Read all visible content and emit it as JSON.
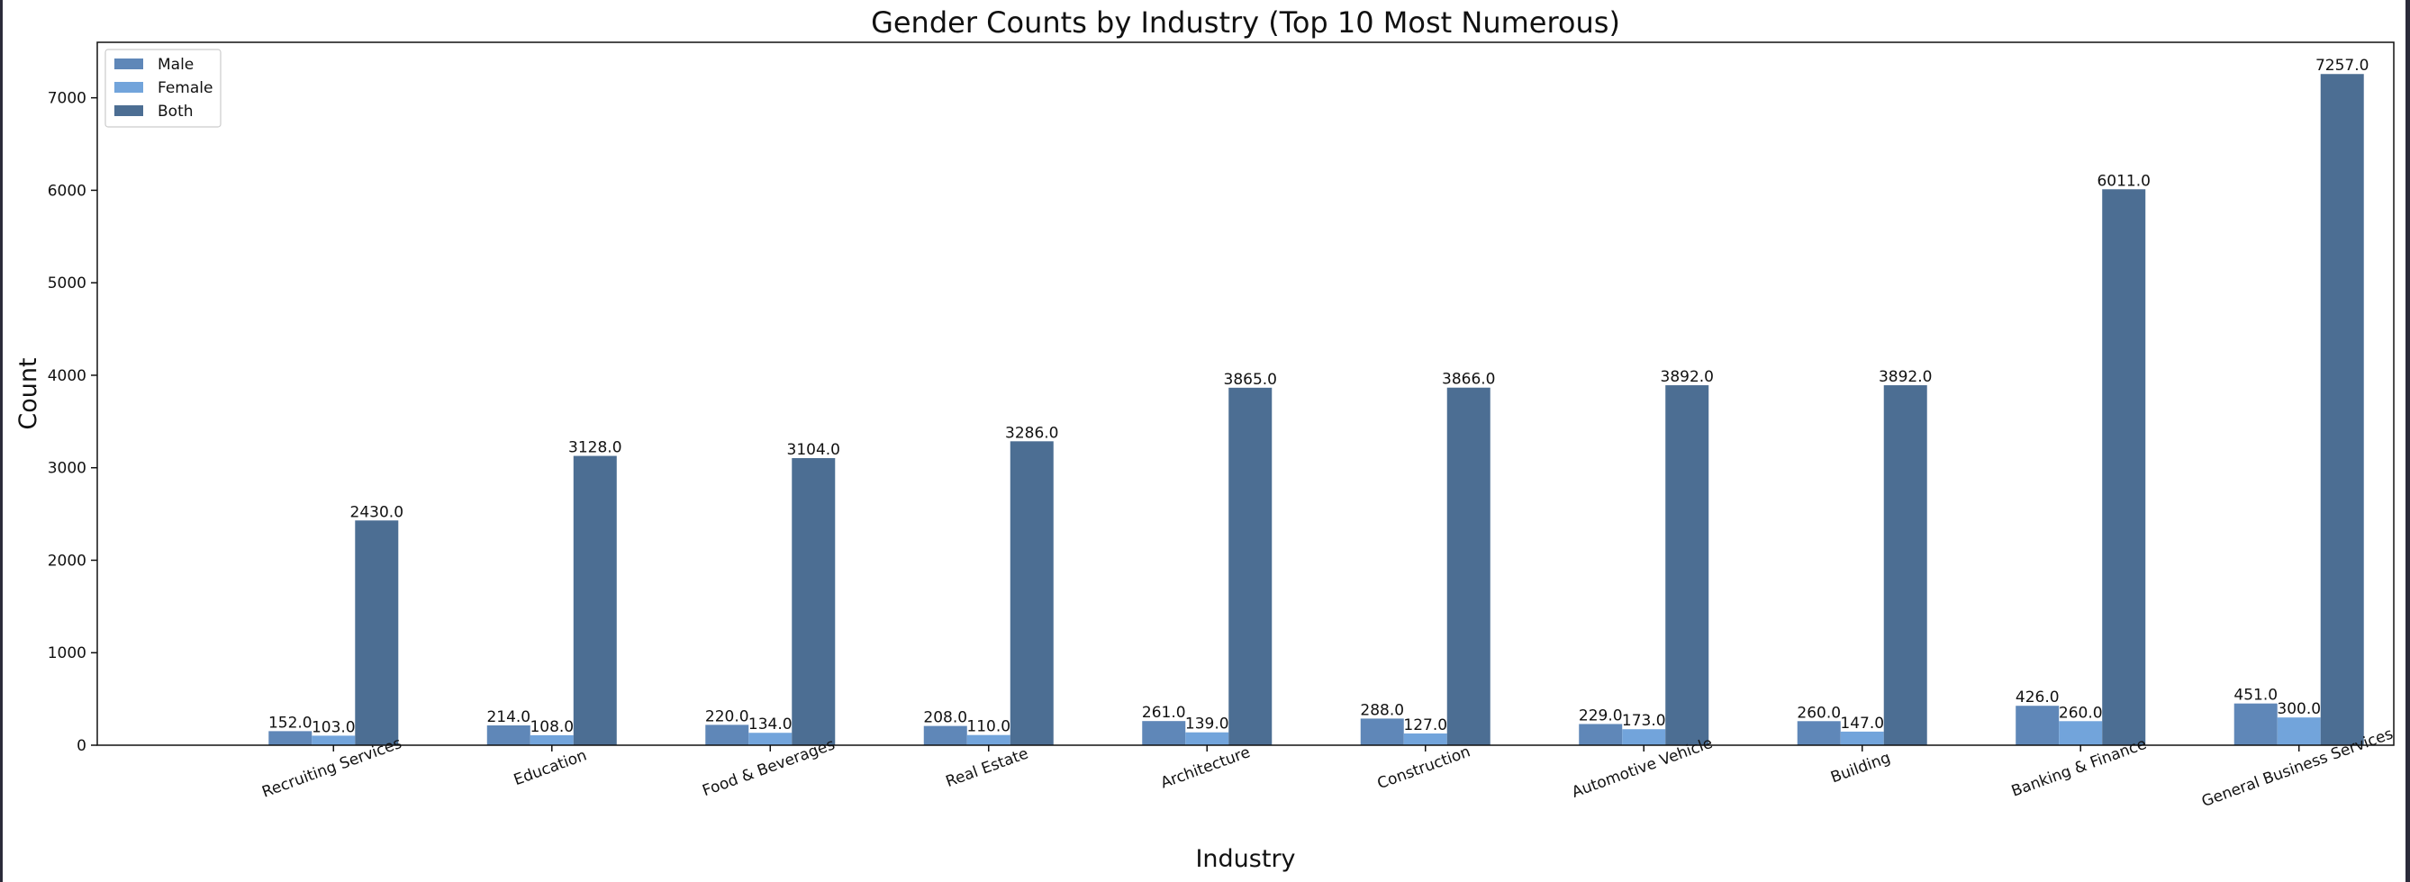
{
  "chart_data": {
    "type": "bar",
    "title": "Gender Counts by Industry (Top 10 Most Numerous)",
    "xlabel": "Industry",
    "ylabel": "Count",
    "ylim": [
      0,
      7600
    ],
    "yticks": [
      0,
      1000,
      2000,
      3000,
      4000,
      5000,
      6000,
      7000
    ],
    "grid": false,
    "legend_position": "top-left",
    "categories": [
      "Recruiting Services",
      "Education",
      "Food & Beverages",
      "Real Estate",
      "Architecture",
      "Construction",
      "Automotive  Vehicle",
      "Building",
      "Banking & Finance",
      "General Business Services"
    ],
    "series": [
      {
        "name": "Male",
        "color": "#5f87b8",
        "values": [
          152.0,
          214.0,
          220.0,
          208.0,
          261.0,
          288.0,
          229.0,
          260.0,
          426.0,
          451.0
        ],
        "labels": [
          "152.0",
          "214.0",
          "220.0",
          "208.0",
          "261.0",
          "288.0",
          "229.0",
          "260.0",
          "426.0",
          "451.0"
        ]
      },
      {
        "name": "Female",
        "color": "#72a4db",
        "values": [
          103.0,
          108.0,
          134.0,
          110.0,
          139.0,
          127.0,
          173.0,
          147.0,
          260.0,
          300.0
        ],
        "labels": [
          "103.0",
          "108.0",
          "134.0",
          "110.0",
          "139.0",
          "127.0",
          "173.0",
          "147.0",
          "260.0",
          "300.0"
        ]
      },
      {
        "name": "Both",
        "color": "#4c6e93",
        "values": [
          2430.0,
          3128.0,
          3104.0,
          3286.0,
          3865.0,
          3866.0,
          3892.0,
          3892.0,
          6011.0,
          7257.0
        ],
        "labels": [
          "2430.0",
          "3128.0",
          "3104.0",
          "3286.0",
          "3865.0",
          "3866.0",
          "3892.0",
          "3892.0",
          "6011.0",
          "7257.0"
        ]
      }
    ]
  }
}
